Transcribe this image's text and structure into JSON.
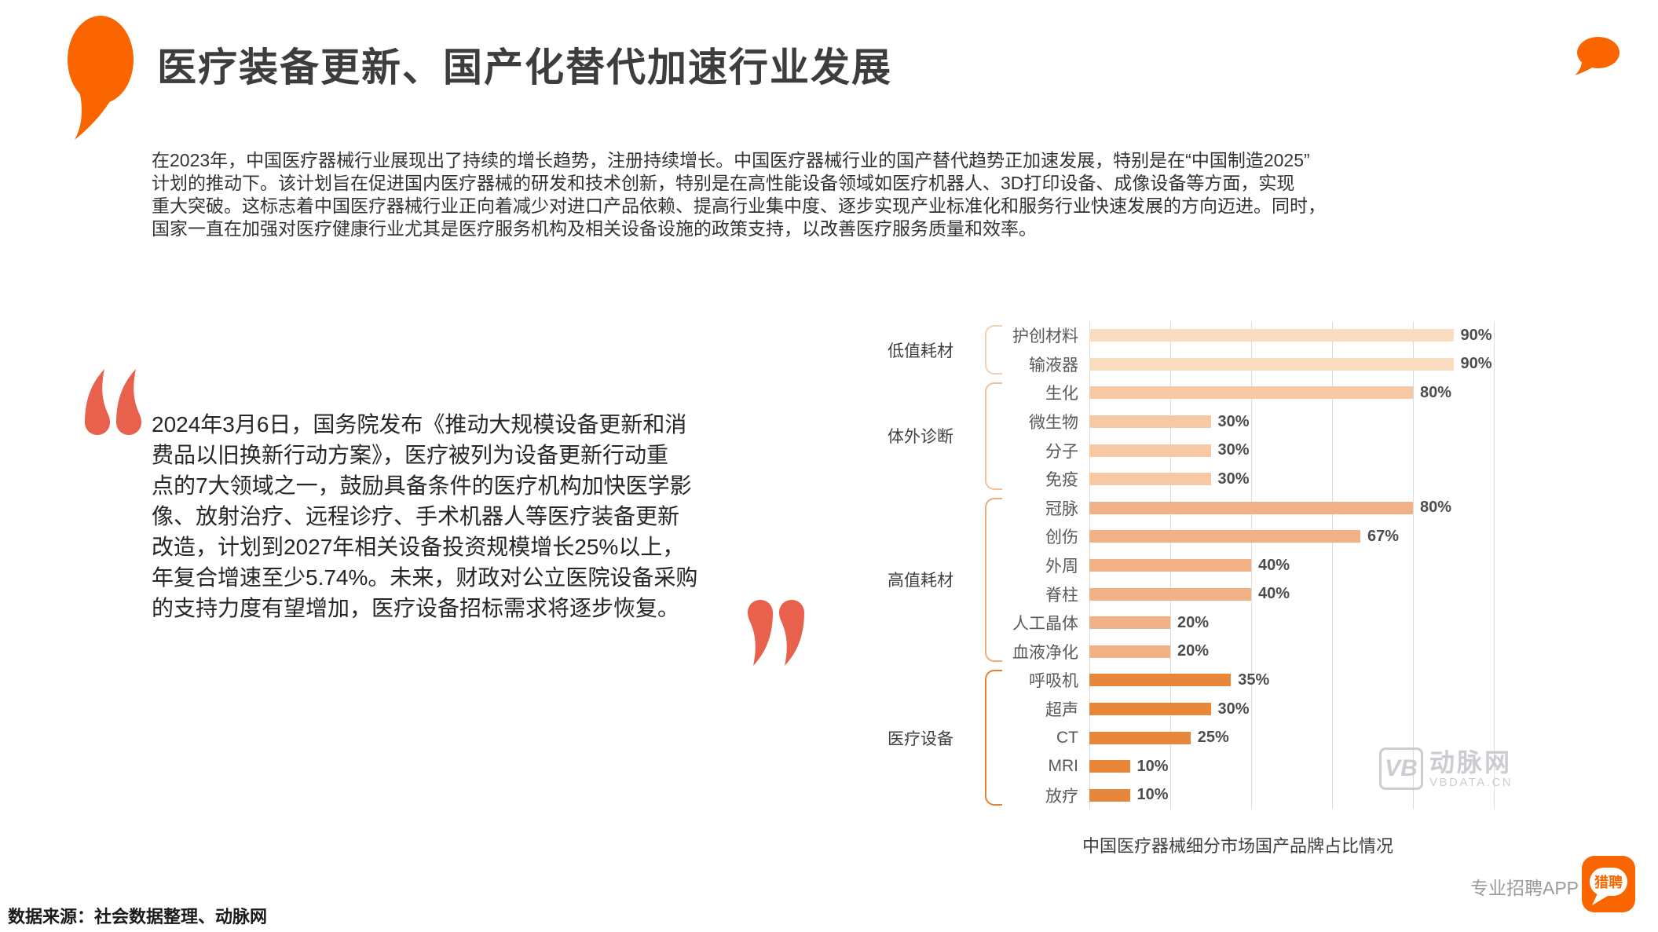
{
  "slide": {
    "title": "医疗装备更新、国产化替代加速行业发展",
    "intro_lines": [
      "在2023年，中国医疗器械行业展现出了持续的增长趋势，注册持续增长。中国医疗器械行业的国产替代趋势正加速发展，特别是在“中国制造2025”",
      "计划的推动下。该计划旨在促进国内医疗器械的研发和技术创新，特别是在高性能设备领域如医疗机器人、3D打印设备、成像设备等方面，实现",
      "重大突破。这标志着中国医疗器械行业正向着减少对进口产品依赖、提高行业集中度、逐步实现产业标准化和服务行业快速发展的方向迈进。同时，",
      "国家一直在加强对医疗健康行业尤其是医疗服务机构及相关设备设施的政策支持，以改善医疗服务质量和效率。"
    ]
  },
  "quote": {
    "lines": [
      "2024年3月6日，国务院发布《推动大规模设备更新和消",
      "费品以旧换新行动方案》，医疗被列为设备更新行动重",
      "点的7大领域之一，鼓励具备条件的医疗机构加快医学影",
      "像、放射治疗、远程诊疗、手术机器人等医疗装备更新",
      "改造，计划到2027年相关设备投资规模增长25%以上，",
      "年复合增速至少5.74%。未来，财政对公立医院设备采购",
      "的支持力度有望增加，医疗设备招标需求将逐步恢复。"
    ]
  },
  "chart_data": {
    "type": "bar",
    "orientation": "horizontal",
    "caption": "中国医疗器械细分市场国产品牌占比情况",
    "unit": "%",
    "xlim": [
      0,
      100
    ],
    "gridline_interval": 20,
    "grid": true,
    "groups": [
      {
        "name": "低值耗材",
        "bar_color": "#fadcc0",
        "bracket_color": "#f6cfae",
        "items": [
          {
            "label": "护创材料",
            "value": 90
          },
          {
            "label": "输液器",
            "value": 90
          }
        ]
      },
      {
        "name": "体外诊断",
        "bar_color": "#f6c9a4",
        "bracket_color": "#f3c29c",
        "items": [
          {
            "label": "生化",
            "value": 80
          },
          {
            "label": "微生物",
            "value": 30
          },
          {
            "label": "分子",
            "value": 30
          },
          {
            "label": "免疫",
            "value": 30
          }
        ]
      },
      {
        "name": "高值耗材",
        "bar_color": "#f1b184",
        "bracket_color": "#eeaa78",
        "items": [
          {
            "label": "冠脉",
            "value": 80
          },
          {
            "label": "创伤",
            "value": 67
          },
          {
            "label": "外周",
            "value": 40
          },
          {
            "label": "脊柱",
            "value": 40
          },
          {
            "label": "人工晶体",
            "value": 20
          },
          {
            "label": "血液净化",
            "value": 20
          }
        ]
      },
      {
        "name": "医疗设备",
        "bar_color": "#e8873a",
        "bracket_color": "#e58030",
        "items": [
          {
            "label": "呼吸机",
            "value": 35
          },
          {
            "label": "超声",
            "value": 30
          },
          {
            "label": "CT",
            "value": 25
          },
          {
            "label": "MRI",
            "value": 10
          },
          {
            "label": "放疗",
            "value": 10
          }
        ]
      }
    ]
  },
  "watermark": {
    "monogram": "VB",
    "name": "动脉网",
    "domain": "VBDATA.CN"
  },
  "footer": {
    "source": "数据来源：社会数据整理、动脉网",
    "app_tagline": "专业招聘APP",
    "app_logo_text": "猎聘"
  },
  "colors": {
    "accent_orange": "#fb6500",
    "quote_mark": "#e8614c",
    "grid_line": "#dcdcdc",
    "value_label": "#4d4d4d"
  }
}
